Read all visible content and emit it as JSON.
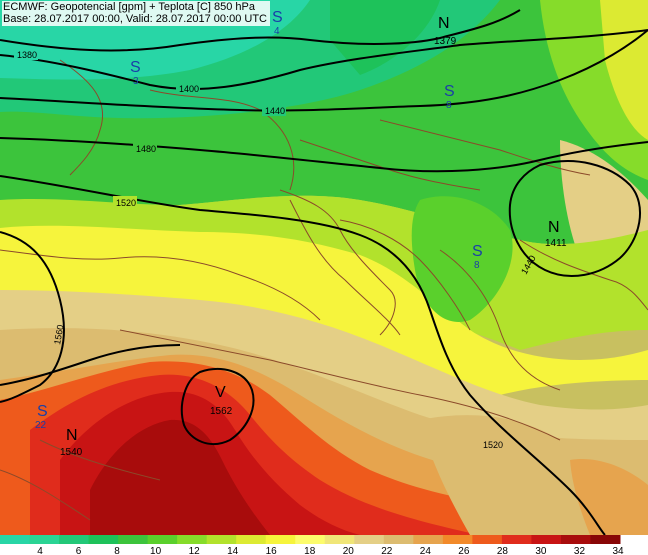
{
  "title": {
    "line1": "ECMWF: Geopotencial [gpm] + Teplota [C] 850 hPa",
    "line2": "Base: 28.07.2017 00:00, Valid: 28.07.2017 00:00 UTC"
  },
  "contours": [
    {
      "label": "1379",
      "name": "contour-1379"
    },
    {
      "label": "1380",
      "name": "contour-1380"
    },
    {
      "label": "1400",
      "name": "contour-1400"
    },
    {
      "label": "1440",
      "name": "contour-1440"
    },
    {
      "label": "1480",
      "name": "contour-1480"
    },
    {
      "label": "1520",
      "name": "contour-1520"
    },
    {
      "label": "1560",
      "name": "contour-1560"
    },
    {
      "label": "1562",
      "name": "contour-1562"
    },
    {
      "label": "1411",
      "name": "contour-1411"
    }
  ],
  "pressure_centers": [
    {
      "type": "N",
      "value": "1379",
      "color": "#000000"
    },
    {
      "type": "N",
      "value": "1411",
      "color": "#000000"
    },
    {
      "type": "N",
      "value": "1540",
      "color": "#000000"
    },
    {
      "type": "V",
      "value": "1562",
      "color": "#000000"
    }
  ],
  "temperature_markers": [
    {
      "letter": "S",
      "value": "4",
      "color": "#1a3fa8"
    },
    {
      "letter": "S",
      "value": "3",
      "color": "#1a3fa8"
    },
    {
      "letter": "S",
      "value": "8",
      "color": "#1a3fa8"
    },
    {
      "letter": "S",
      "value": "8",
      "color": "#1a3fa8"
    },
    {
      "letter": "S",
      "value": "22",
      "color": "#1a3fa8"
    }
  ],
  "legend": {
    "colors": [
      "#28d6a6",
      "#2ad494",
      "#22c878",
      "#1ec25a",
      "#3cc43c",
      "#5ad02c",
      "#86dc2a",
      "#b2e22c",
      "#dcea32",
      "#f6f43c",
      "#fcfc6c",
      "#f0e678",
      "#e4cf86",
      "#dcbc70",
      "#e6a44e",
      "#f28a2a",
      "#ee5a1c",
      "#e02c1c",
      "#c81414",
      "#a80c0c",
      "#880606"
    ],
    "ticks": [
      "4",
      "6",
      "8",
      "10",
      "12",
      "14",
      "16",
      "18",
      "20",
      "22",
      "24",
      "26",
      "28",
      "30",
      "32",
      "34"
    ]
  }
}
